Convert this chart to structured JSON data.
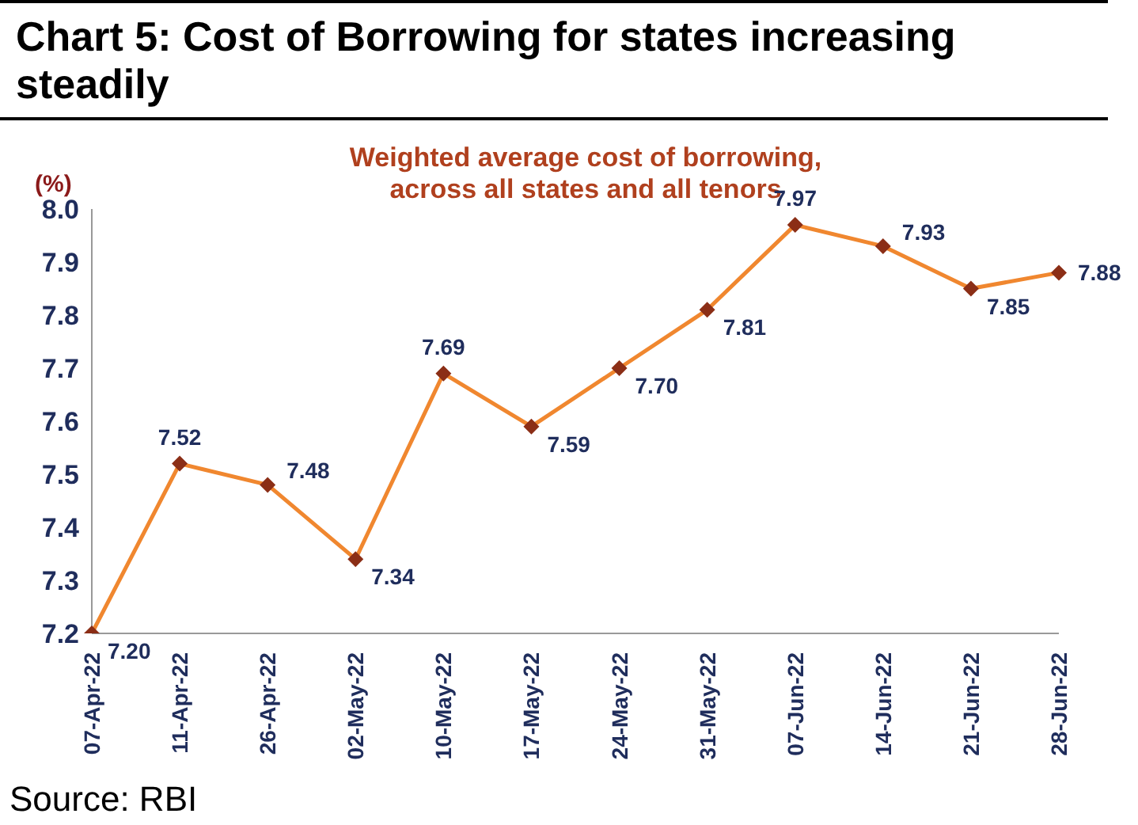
{
  "chart_data": {
    "type": "line",
    "title": "Chart 5: Cost of Borrowing for states increasing steadily",
    "subtitle": "Weighted average cost of borrowing, across all states and all tenors",
    "ylabel": "(%)",
    "categories": [
      "07-Apr-22",
      "11-Apr-22",
      "26-Apr-22",
      "02-May-22",
      "10-May-22",
      "17-May-22",
      "24-May-22",
      "31-May-22",
      "07-Jun-22",
      "14-Jun-22",
      "21-Jun-22",
      "28-Jun-22"
    ],
    "series": [
      {
        "color": "#f0872f",
        "values": [
          7.2,
          7.52,
          7.48,
          7.34,
          7.69,
          7.59,
          7.7,
          7.81,
          7.97,
          7.93,
          7.85,
          7.88
        ],
        "value_labels": [
          "7.20",
          "7.52",
          "7.48",
          "7.34",
          "7.69",
          "7.59",
          "7.70",
          "7.81",
          "7.97",
          "7.93",
          "7.85",
          "7.88"
        ]
      }
    ],
    "ylim": [
      7.2,
      8.0
    ],
    "yticks": [
      7.2,
      7.3,
      7.4,
      7.5,
      7.6,
      7.7,
      7.8,
      7.9,
      {
        "value": 8.0,
        "label": "8.0"
      }
    ],
    "marker": "diamond",
    "annotations": [
      "Source: RBI"
    ]
  }
}
